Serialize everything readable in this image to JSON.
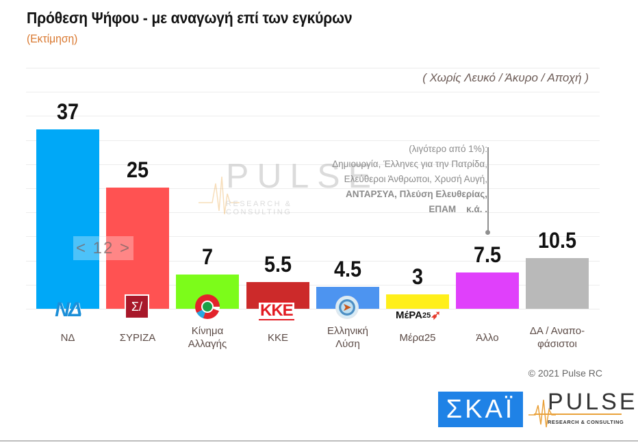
{
  "header": {
    "title": "Πρόθεση Ψήφου - με αναγωγή επί των εγκύρων",
    "subtitle": "(Εκτίμηση)",
    "note": "( Χωρίς Λευκό / Άκυρο / Αποχή )"
  },
  "annotation": {
    "lines": [
      "(λιγότερο από 1%):",
      "Δημιουργία, Έλληνες για την Πατρίδα,",
      "Ελεύθεροι Άνθρωποι, Χρυσή Αυγή,",
      "ΑΝΤΑΡΣΥΑ, Πλεύση Ελευθερίας,",
      "ΕΠΑΜ    κ.ά. ."
    ]
  },
  "overlay": {
    "label": "< 12 >"
  },
  "watermark": {
    "word": "PULSE",
    "sub": "RESEARCH & CONSULTING"
  },
  "footer": {
    "copyright": "© 2021 Pulse RC",
    "skai_logo": "ΣΚΑΪ",
    "pulse_logo": "PULSE",
    "pulse_sub": "RESEARCH & CONSULTING"
  },
  "logos": {
    "nd": "ΝΔ",
    "syriza": "Σ/",
    "kke": "ΚΚΕ",
    "el": "➤",
    "mera_a": "ΜέΡΑ",
    "mera_b": "25"
  },
  "chart_data": {
    "type": "bar",
    "title": "Πρόθεση Ψήφου - με αναγωγή επί των εγκύρων",
    "subtitle": "(Εκτίμηση)",
    "note": "( Χωρίς Λευκό / Άκυρο / Αποχή )",
    "categories": [
      "ΝΔ",
      "ΣΥΡΙΖΑ",
      "Κίνημα Αλλαγής",
      "ΚΚΕ",
      "Ελληνική Λύση",
      "Μέρα25",
      "Άλλο",
      "ΔΑ / Αναπο-φάσιστοι"
    ],
    "values": [
      37,
      25,
      7,
      5.5,
      4.5,
      3,
      7.5,
      10.5
    ],
    "value_labels": [
      "37",
      "25",
      "7",
      "5.5",
      "4.5",
      "3",
      "7.5",
      "10.5"
    ],
    "colors": [
      "#00a8f7",
      "#ff5252",
      "#7cfc1a",
      "#cc2a2a",
      "#4d94f0",
      "#ffef1a",
      "#e040fb",
      "#b9b9b9"
    ],
    "category_label_lines": [
      [
        "ΝΔ"
      ],
      [
        "ΣΥΡΙΖΑ"
      ],
      [
        "Κίνημα",
        "Αλλαγής"
      ],
      [
        "ΚΚΕ"
      ],
      [
        "Ελληνική",
        "Λύση"
      ],
      [
        "Μέρα25"
      ],
      [
        "Άλλο"
      ],
      [
        "ΔΑ / Αναπο-",
        "φάσιστοι"
      ]
    ],
    "xlabel": "",
    "ylabel": "",
    "ylim": [
      0,
      50
    ],
    "grid": true,
    "legend": "none",
    "annotations": [
      "< 12 >",
      "(λιγότερο από 1%): Δημιουργία, Έλληνες για την Πατρίδα, Ελεύθεροι Άνθρωποι, Χρυσή Αυγή, ΑΝΤΑΡΣΥΑ, Πλεύση Ελευθερίας, ΕΠΑΜ κ.ά."
    ]
  }
}
